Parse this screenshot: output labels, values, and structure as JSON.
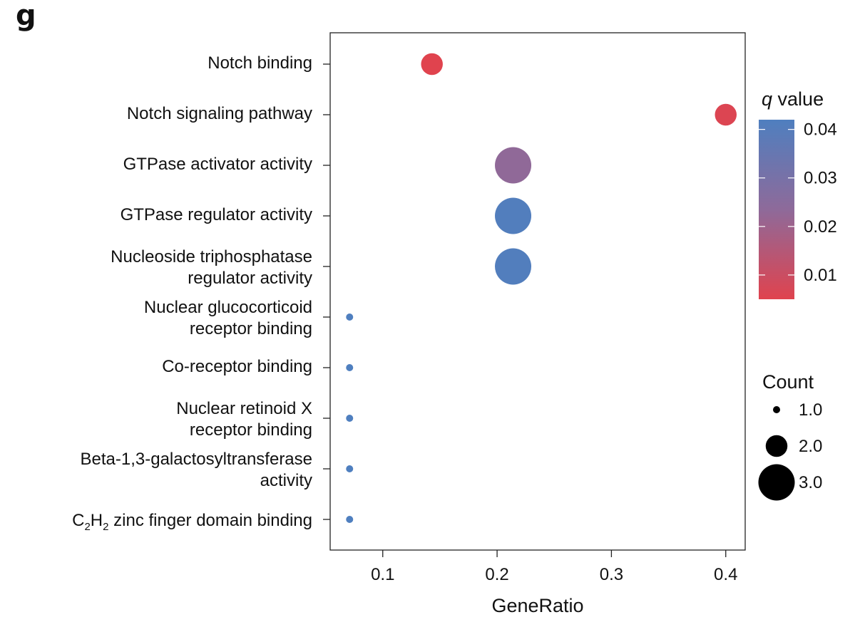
{
  "panel_label": "g",
  "chart_data": {
    "type": "scatter",
    "xlabel": "GeneRatio",
    "x_ticks": [
      0.1,
      0.2,
      0.3,
      0.4
    ],
    "x_tick_labels": [
      "0.1",
      "0.2",
      "0.3",
      "0.4"
    ],
    "xlim": [
      0.054,
      0.417
    ],
    "categories": [
      "Notch binding",
      "Notch signaling pathway",
      "GTPase activator activity",
      "GTPase regulator activity",
      "Nucleoside triphosphatase regulator activity",
      "Nuclear glucocorticoid receptor binding",
      "Co-receptor binding",
      "Nuclear retinoid X receptor binding",
      "Beta-1,3-galactosyltransferase activity",
      "C2H2 zinc finger domain binding"
    ],
    "category_label_lines": [
      [
        "Notch binding"
      ],
      [
        "Notch signaling pathway"
      ],
      [
        "GTPase activator activity"
      ],
      [
        "GTPase regulator activity"
      ],
      [
        "Nucleoside triphosphatase",
        "regulator activity"
      ],
      [
        "Nuclear glucocorticoid",
        "receptor binding"
      ],
      [
        "Co-receptor binding"
      ],
      [
        "Nuclear retinoid X",
        "receptor binding"
      ],
      [
        "Beta-1,3-galactosyltransferase",
        "activity"
      ],
      [
        "C",
        "2",
        "H",
        "2",
        " zinc finger domain binding"
      ]
    ],
    "points": [
      {
        "term": "Notch binding",
        "gene_ratio": 0.143,
        "count": 2,
        "q_value": 0.005
      },
      {
        "term": "Notch signaling pathway",
        "gene_ratio": 0.4,
        "count": 2,
        "q_value": 0.006
      },
      {
        "term": "GTPase activator activity",
        "gene_ratio": 0.214,
        "count": 3,
        "q_value": 0.023
      },
      {
        "term": "GTPase regulator activity",
        "gene_ratio": 0.214,
        "count": 3,
        "q_value": 0.041
      },
      {
        "term": "Nucleoside triphosphatase regulator activity",
        "gene_ratio": 0.214,
        "count": 3,
        "q_value": 0.041
      },
      {
        "term": "Nuclear glucocorticoid receptor binding",
        "gene_ratio": 0.071,
        "count": 1,
        "q_value": 0.042
      },
      {
        "term": "Co-receptor binding",
        "gene_ratio": 0.071,
        "count": 1,
        "q_value": 0.042
      },
      {
        "term": "Nuclear retinoid X receptor binding",
        "gene_ratio": 0.071,
        "count": 1,
        "q_value": 0.042
      },
      {
        "term": "Beta-1,3-galactosyltransferase activity",
        "gene_ratio": 0.071,
        "count": 1,
        "q_value": 0.042
      },
      {
        "term": "C2H2 zinc finger domain binding",
        "gene_ratio": 0.071,
        "count": 1,
        "q_value": 0.042
      }
    ],
    "color_legend": {
      "title_italic": "q",
      "title_rest": " value",
      "range": [
        0.005,
        0.042
      ],
      "ticks": [
        0.01,
        0.02,
        0.03,
        0.04
      ],
      "tick_labels": [
        "0.01",
        "0.02",
        "0.03",
        "0.04"
      ],
      "low_color": "#e0434e",
      "mid_color": "#8e6a9a",
      "high_color": "#4f7fbf"
    },
    "size_legend": {
      "title": "Count",
      "values": [
        1.0,
        2.0,
        3.0
      ],
      "labels": [
        "1.0",
        "2.0",
        "3.0"
      ]
    },
    "grid": false,
    "legend_position": "right"
  }
}
